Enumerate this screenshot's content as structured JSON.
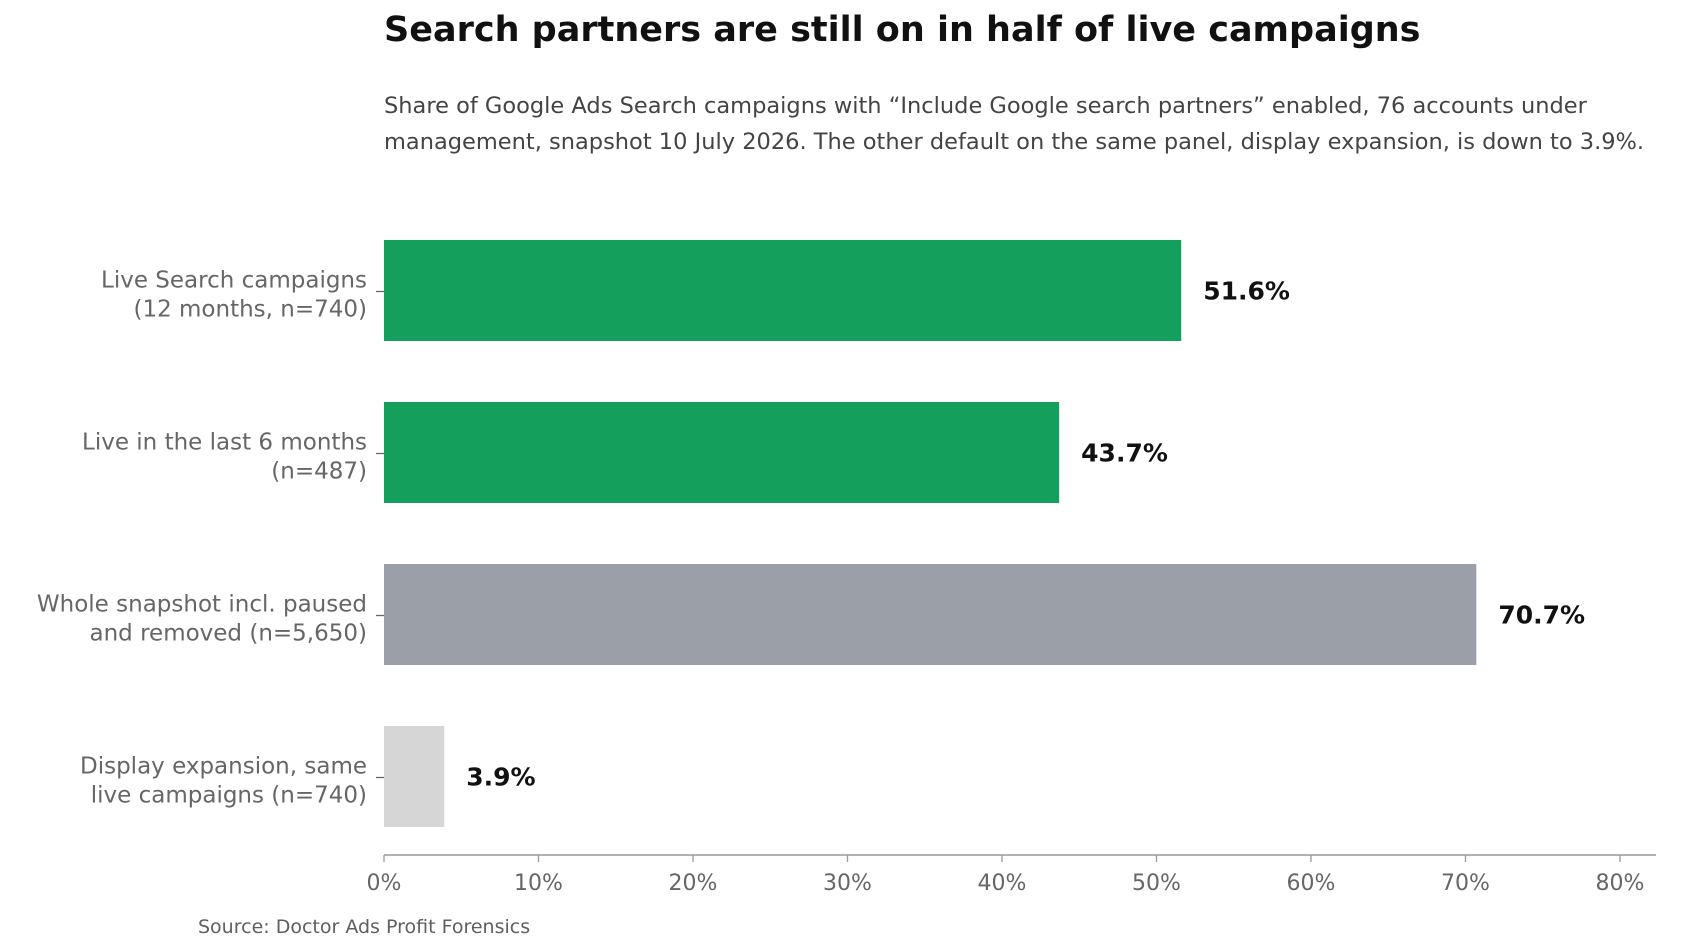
{
  "chart_data": {
    "type": "bar",
    "orientation": "horizontal",
    "title": "Search partners are still on in half of live campaigns",
    "subtitle": "Share of Google Ads Search campaigns with “Include Google search partners” enabled, 76 accounts under management, snapshot 10 July 2026. The other default on the same panel, display expansion, is down to 3.9%.",
    "source": "Source: Doctor Ads Profit Forensics",
    "categories": [
      [
        "Live Search campaigns",
        "(12 months, n=740)"
      ],
      [
        "Live in the last 6 months",
        "(n=487)"
      ],
      [
        "Whole snapshot incl. paused",
        "and removed (n=5,650)"
      ],
      [
        "Display expansion, same",
        "live campaigns (n=740)"
      ]
    ],
    "values": [
      51.6,
      43.7,
      70.7,
      3.9
    ],
    "value_labels": [
      "51.6%",
      "43.7%",
      "70.7%",
      "3.9%"
    ],
    "colors": [
      "#14a05c",
      "#14a05c",
      "#9ba0a8",
      "#d6d6d6"
    ],
    "xlim": [
      0,
      80
    ],
    "xticks": [
      0,
      10,
      20,
      30,
      40,
      50,
      60,
      70,
      80
    ],
    "xtick_labels": [
      "0%",
      "10%",
      "20%",
      "30%",
      "40%",
      "50%",
      "60%",
      "70%",
      "80%"
    ],
    "grid": false,
    "axis_color": "#999999"
  }
}
